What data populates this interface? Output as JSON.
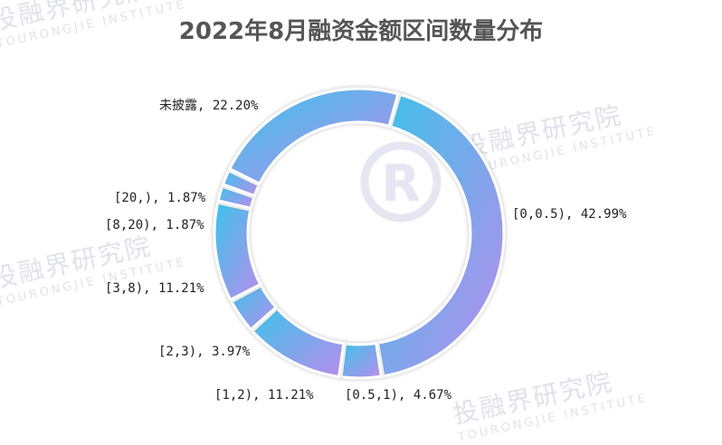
{
  "chart_data": {
    "type": "pie",
    "variant": "donut",
    "title": "2022年8月融资金额区间数量分布",
    "slices": [
      {
        "label": "[0,0.5)",
        "value": 42.99,
        "text": "[0,0.5), 42.99%"
      },
      {
        "label": "[0.5,1)",
        "value": 4.67,
        "text": "[0.5,1), 4.67%"
      },
      {
        "label": "[1,2)",
        "value": 11.21,
        "text": "[1,2), 11.21%"
      },
      {
        "label": "[2,3)",
        "value": 3.97,
        "text": "[2,3), 3.97%"
      },
      {
        "label": "[3,8)",
        "value": 11.21,
        "text": "[3,8), 11.21%"
      },
      {
        "label": "[8,20)",
        "value": 1.87,
        "text": "[8,20), 1.87%"
      },
      {
        "label": "[20,)",
        "value": 1.87,
        "text": "[20,), 1.87%"
      },
      {
        "label": "未披露",
        "value": 22.2,
        "text": "未披露, 22.20%"
      }
    ],
    "colors": {
      "gradient_start": "#3cc3ea",
      "gradient_end": "#b98cec"
    }
  },
  "watermark": {
    "text_cn": "投融界研究院",
    "text_en": "TOURONGJIE INSTITUTE"
  }
}
